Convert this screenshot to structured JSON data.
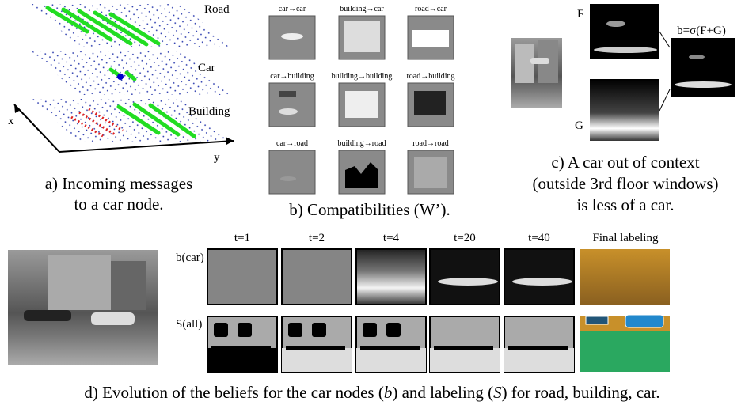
{
  "panel_a": {
    "layers": [
      "Road",
      "Car",
      "Building"
    ],
    "axes": [
      "x",
      "y"
    ],
    "caption": [
      "a) Incoming messages",
      "to a car node."
    ]
  },
  "panel_b": {
    "labels": [
      "car→car",
      "building→car",
      "road→car",
      "car→building",
      "building→building",
      "road→building",
      "car→road",
      "building→road",
      "road→road"
    ],
    "caption": "b) Compatibilities (W’)."
  },
  "panel_c": {
    "f_label": "F",
    "g_label": "G",
    "formula": "b=σ(F+G)",
    "caption": [
      "c) A car out of context",
      "(outside 3rd floor windows)",
      "is less of a car."
    ]
  },
  "panel_d": {
    "times": [
      "t=1",
      "t=2",
      "t=4",
      "t=20",
      "t=40"
    ],
    "final": "Final labeling",
    "rows": [
      "b(car)",
      "S(all)"
    ],
    "caption": [
      "d) Evolution of the beliefs for the car nodes (",
      "b",
      ") and labeling (",
      "S",
      ") for road, building, car."
    ]
  }
}
